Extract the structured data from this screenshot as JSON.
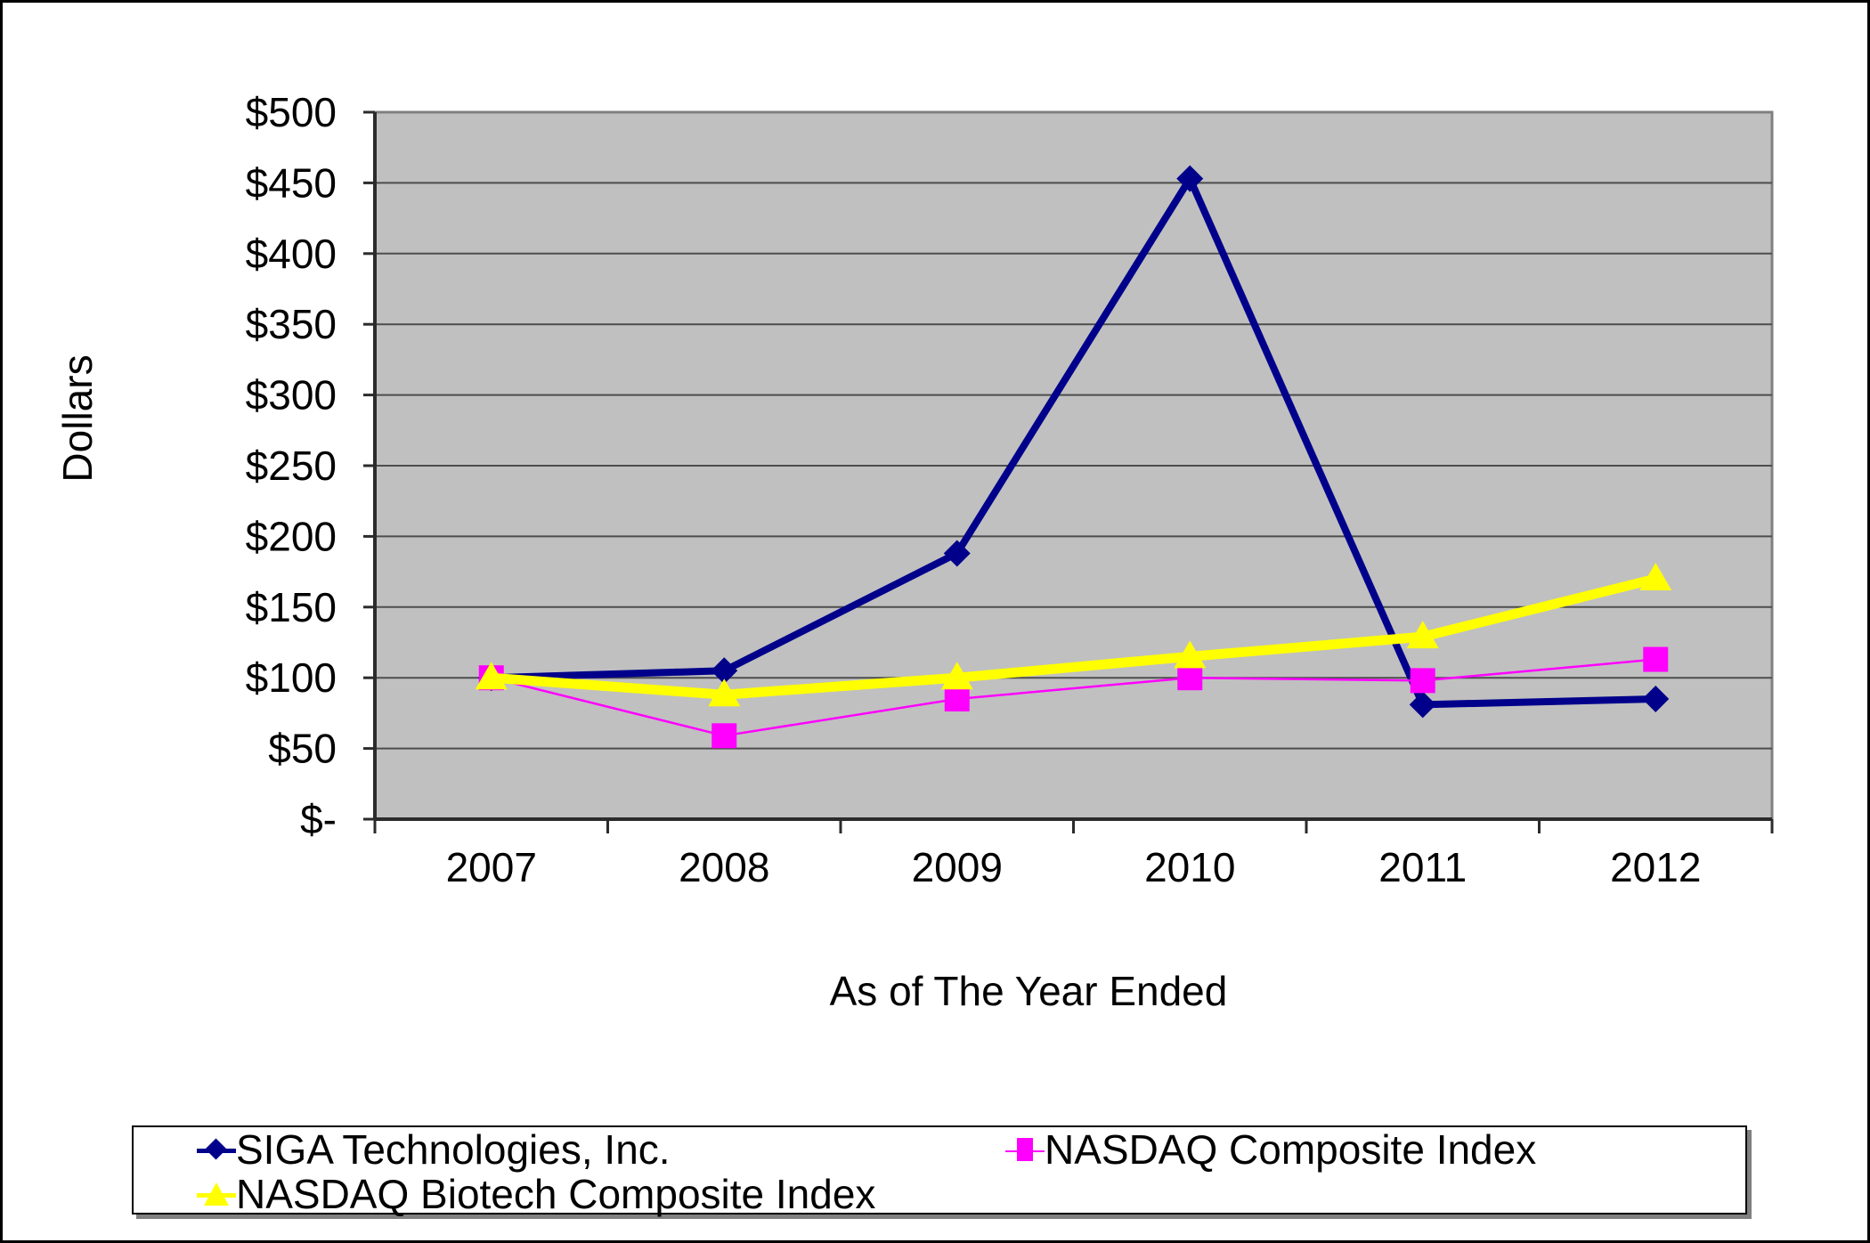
{
  "chart_data": {
    "type": "line",
    "title": "",
    "xlabel": "As of The Year Ended",
    "ylabel": "Dollars",
    "categories": [
      "2007",
      "2008",
      "2009",
      "2010",
      "2011",
      "2012"
    ],
    "ylim": [
      0,
      500
    ],
    "ytick_step": 50,
    "ytick_labels": [
      "$-",
      "$50",
      "$100",
      "$150",
      "$200",
      "$250",
      "$300",
      "$350",
      "$400",
      "$450",
      "$500"
    ],
    "grid": true,
    "legend_position": "bottom",
    "plot_bg": "#C0C0C0",
    "gridline_color": "#4D4D4D",
    "axis_color": "#2B2B2B",
    "plot_border_color": "#808080",
    "series": [
      {
        "name": "SIGA Technologies, Inc.",
        "color": "#00008B",
        "marker": "diamond",
        "line_width": 8,
        "values": [
          100,
          105,
          188,
          453,
          81,
          85
        ]
      },
      {
        "name": "NASDAQ Composite Index",
        "color": "#FF00FF",
        "marker": "square",
        "line_width": 2.5,
        "values": [
          100,
          59,
          85,
          100,
          98,
          113
        ]
      },
      {
        "name": "NASDAQ Biotech Composite Index",
        "color": "#FFFF00",
        "marker": "triangle",
        "line_width": 11,
        "values": [
          100,
          88,
          100,
          115,
          129,
          170
        ]
      }
    ]
  }
}
